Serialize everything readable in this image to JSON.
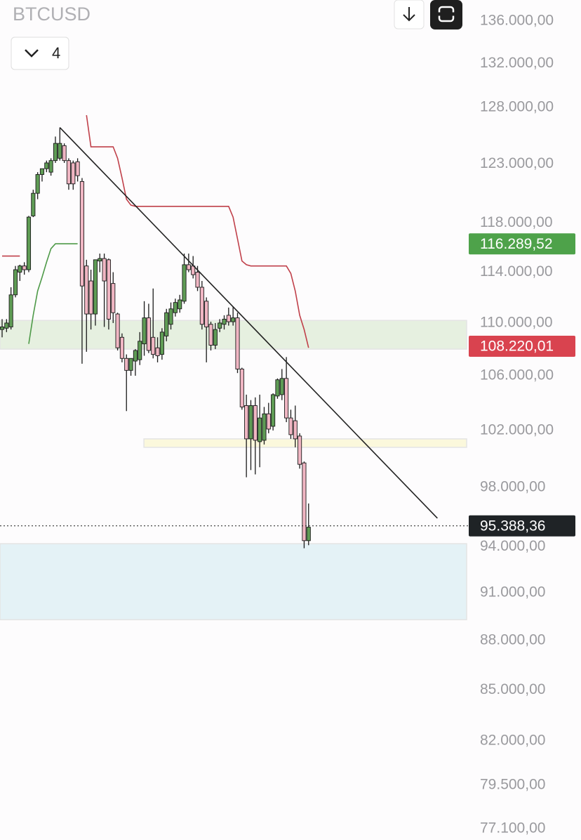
{
  "header": {
    "symbol": "BTCUSD",
    "interval": "4"
  },
  "chart_data": {
    "type": "candlestick",
    "log_scale": true,
    "ylim": [
      77100,
      136000
    ],
    "yticks": [
      {
        "value": 136000,
        "label": "136.000,00"
      },
      {
        "value": 132000,
        "label": "132.000,00"
      },
      {
        "value": 128000,
        "label": "128.000,00"
      },
      {
        "value": 123000,
        "label": "123.000,00"
      },
      {
        "value": 118000,
        "label": "118.000,00"
      },
      {
        "value": 114000,
        "label": "114.000,00"
      },
      {
        "value": 110000,
        "label": "110.000,00"
      },
      {
        "value": 106000,
        "label": "106.000,00"
      },
      {
        "value": 102000,
        "label": "102.000,00"
      },
      {
        "value": 98000,
        "label": "98.000,00"
      },
      {
        "value": 94000,
        "label": "94.000,00"
      },
      {
        "value": 91000,
        "label": "91.000,00"
      },
      {
        "value": 88000,
        "label": "88.000,00"
      },
      {
        "value": 85000,
        "label": "85.000,00"
      },
      {
        "value": 82000,
        "label": "82.000,00"
      },
      {
        "value": 79500,
        "label": "79.500,00"
      },
      {
        "value": 77100,
        "label": "77.100,00"
      }
    ],
    "up_color": "#5f9c55",
    "down_color": "#f0b6c3",
    "candles": [
      [
        109500,
        110300,
        108900,
        109700
      ],
      [
        109600,
        110300,
        109300,
        110000
      ],
      [
        109700,
        112800,
        109500,
        112200
      ],
      [
        112200,
        114500,
        112000,
        114200
      ],
      [
        114000,
        114600,
        113300,
        114500
      ],
      [
        114500,
        114800,
        113800,
        114200
      ],
      [
        114200,
        118600,
        114000,
        118500
      ],
      [
        118600,
        120800,
        118500,
        120500
      ],
      [
        120500,
        122300,
        120000,
        122100
      ],
      [
        122100,
        122600,
        121500,
        122600
      ],
      [
        122600,
        123300,
        122300,
        123100
      ],
      [
        122300,
        123500,
        122000,
        123300
      ],
      [
        123300,
        125400,
        123100,
        124800
      ],
      [
        123500,
        126200,
        123300,
        124800
      ],
      [
        124600,
        124800,
        123100,
        123300
      ],
      [
        123300,
        123500,
        120800,
        121300
      ],
      [
        123100,
        123300,
        120800,
        121300
      ],
      [
        123200,
        123500,
        121500,
        122000
      ],
      [
        121500,
        121800,
        106900,
        112900
      ],
      [
        114500,
        115000,
        107800,
        110700
      ],
      [
        113300,
        114200,
        109500,
        110700
      ],
      [
        110700,
        115000,
        109800,
        115000
      ],
      [
        114900,
        115500,
        114000,
        115100
      ],
      [
        115100,
        115500,
        109700,
        113300
      ],
      [
        115000,
        115100,
        109500,
        110300
      ],
      [
        113100,
        114000,
        110000,
        110800
      ],
      [
        110700,
        110800,
        107900,
        108100
      ],
      [
        108900,
        109200,
        107000,
        107300
      ],
      [
        107300,
        107600,
        103400,
        106400
      ],
      [
        106400,
        107300,
        106000,
        107300
      ],
      [
        107100,
        108000,
        106000,
        107900
      ],
      [
        107200,
        109300,
        106800,
        108600
      ],
      [
        108400,
        111700,
        107500,
        110400
      ],
      [
        110400,
        111500,
        107700,
        107900
      ],
      [
        108900,
        112700,
        107300,
        107600
      ],
      [
        108100,
        108900,
        107000,
        107500
      ],
      [
        107600,
        109600,
        107200,
        109300
      ],
      [
        109000,
        111100,
        108600,
        110800
      ],
      [
        109900,
        111600,
        109500,
        111100
      ],
      [
        110800,
        111900,
        110500,
        111600
      ],
      [
        111100,
        112200,
        110800,
        111800
      ],
      [
        111700,
        115500,
        111500,
        114600
      ],
      [
        114600,
        115500,
        114000,
        114200
      ],
      [
        114500,
        115300,
        113500,
        113800
      ],
      [
        114000,
        114500,
        112500,
        112800
      ],
      [
        112800,
        113300,
        109500,
        109900
      ],
      [
        111700,
        112000,
        107000,
        109700
      ],
      [
        109900,
        110100,
        107900,
        108300
      ],
      [
        108300,
        110000,
        108000,
        109500
      ],
      [
        109600,
        110300,
        109300,
        110000
      ],
      [
        109900,
        110600,
        109500,
        110300
      ],
      [
        110600,
        111200,
        109800,
        110100
      ],
      [
        110100,
        111300,
        109800,
        110400
      ],
      [
        110400,
        110800,
        106200,
        106500
      ],
      [
        106500,
        106600,
        103500,
        103700
      ],
      [
        103800,
        104600,
        98700,
        101400
      ],
      [
        101400,
        104200,
        99200,
        103800
      ],
      [
        103800,
        104400,
        98900,
        101300
      ],
      [
        101200,
        104600,
        99400,
        102900
      ],
      [
        101300,
        103700,
        101000,
        103200
      ],
      [
        103200,
        104000,
        101800,
        102100
      ],
      [
        102300,
        104700,
        102000,
        104600
      ],
      [
        104500,
        105800,
        104300,
        105700
      ],
      [
        104600,
        106500,
        104200,
        105800
      ],
      [
        105800,
        107400,
        102600,
        102900
      ],
      [
        102900,
        103500,
        101400,
        101700
      ],
      [
        102700,
        103800,
        100800,
        101400
      ],
      [
        101600,
        101800,
        99300,
        99600
      ],
      [
        99700,
        99800,
        93900,
        94400
      ],
      [
        94400,
        96900,
        94100,
        95300
      ]
    ],
    "lines": [
      {
        "color": "#c0404a",
        "values": [
          115300,
          115300,
          115300,
          115300,
          115300,
          null,
          null,
          null,
          null,
          null,
          null,
          null,
          null,
          null,
          null,
          null,
          null,
          null,
          null,
          127300,
          124500,
          124500,
          124500,
          124500,
          124500,
          124500,
          123500,
          121800,
          120000,
          119500,
          119400,
          119400,
          119400,
          119400,
          119400,
          119400,
          119400,
          119400,
          119400,
          119400,
          119400,
          119400,
          119400,
          119400,
          119400,
          119400,
          119400,
          119400,
          119400,
          119400,
          119400,
          119400,
          118500,
          116700,
          114900,
          114600,
          114500,
          114500,
          114500,
          114500,
          114500,
          114500,
          114500,
          114500,
          114500,
          113900,
          112500,
          110600,
          109500,
          108100
        ]
      },
      {
        "color": "#4e9a48",
        "values": [
          null,
          null,
          null,
          null,
          null,
          null,
          108400,
          110600,
          112500,
          113600,
          114800,
          115900,
          116300,
          116300,
          116300,
          116300,
          116300,
          116300,
          null,
          null,
          null,
          null,
          null,
          null,
          null,
          null,
          null,
          null,
          null,
          null,
          null,
          null,
          null,
          null,
          null,
          null,
          null,
          null,
          null,
          null,
          null,
          null,
          null,
          null,
          null,
          null,
          null,
          null,
          null,
          null,
          null,
          null,
          null,
          null,
          null,
          null,
          null,
          null,
          null,
          null,
          null,
          null,
          null,
          null,
          null,
          null,
          null,
          null,
          null,
          null
        ]
      }
    ],
    "trendline": {
      "from": [
        13,
        126200
      ],
      "to": [
        98,
        95900
      ],
      "color": "#222222"
    },
    "zones": [
      {
        "start": 0,
        "top": 110200,
        "bottom": 108000,
        "color": "#e6f0e0"
      },
      {
        "start": 32.4,
        "top": 101400,
        "bottom": 100800,
        "color": "#fbf8dc"
      },
      {
        "start": 0,
        "top": 94200,
        "bottom": 89300,
        "color": "#e4f2f6"
      }
    ],
    "price_tags": [
      {
        "value": 116289.52,
        "label": "116.289,52",
        "color": "#4ea24a"
      },
      {
        "value": 108220.01,
        "label": "108.220,01",
        "color": "#d9434f"
      },
      {
        "value": 95388.36,
        "label": "95.388,36",
        "color": "#1f2326",
        "dotted": true
      }
    ]
  }
}
